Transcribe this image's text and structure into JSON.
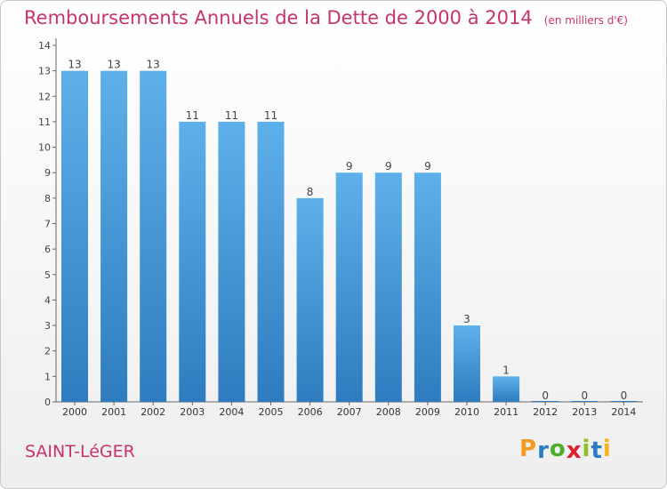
{
  "title": "Remboursements Annuels de la Dette de 2000 à 2014",
  "unit": "(en milliers d'€)",
  "commune": "SAINT-LéGER",
  "logo": {
    "letters": [
      "P",
      "r",
      "o",
      "x",
      "i",
      "t",
      "i"
    ],
    "colors": [
      "#f39a1e",
      "#2b7bc4",
      "#4caf2a",
      "#d9232d",
      "#8fbf24",
      "#2b7bc4",
      "#f3b21e"
    ]
  },
  "colors": {
    "bar_light": "#5eb0ea",
    "bar_dark": "#2e7cbf",
    "title": "#c8326e"
  },
  "chart_data": {
    "type": "bar",
    "categories": [
      "2000",
      "2001",
      "2002",
      "2003",
      "2004",
      "2005",
      "2006",
      "2007",
      "2008",
      "2009",
      "2010",
      "2011",
      "2012",
      "2013",
      "2014"
    ],
    "values": [
      13,
      13,
      13,
      11,
      11,
      11,
      8,
      9,
      9,
      9,
      3,
      1,
      0,
      0,
      0
    ],
    "y_ticks": [
      0,
      1,
      2,
      3,
      4,
      5,
      6,
      7,
      8,
      9,
      10,
      11,
      12,
      13,
      14
    ],
    "ylim": [
      0,
      14
    ],
    "grid": false,
    "xlabel": "",
    "ylabel": ""
  }
}
